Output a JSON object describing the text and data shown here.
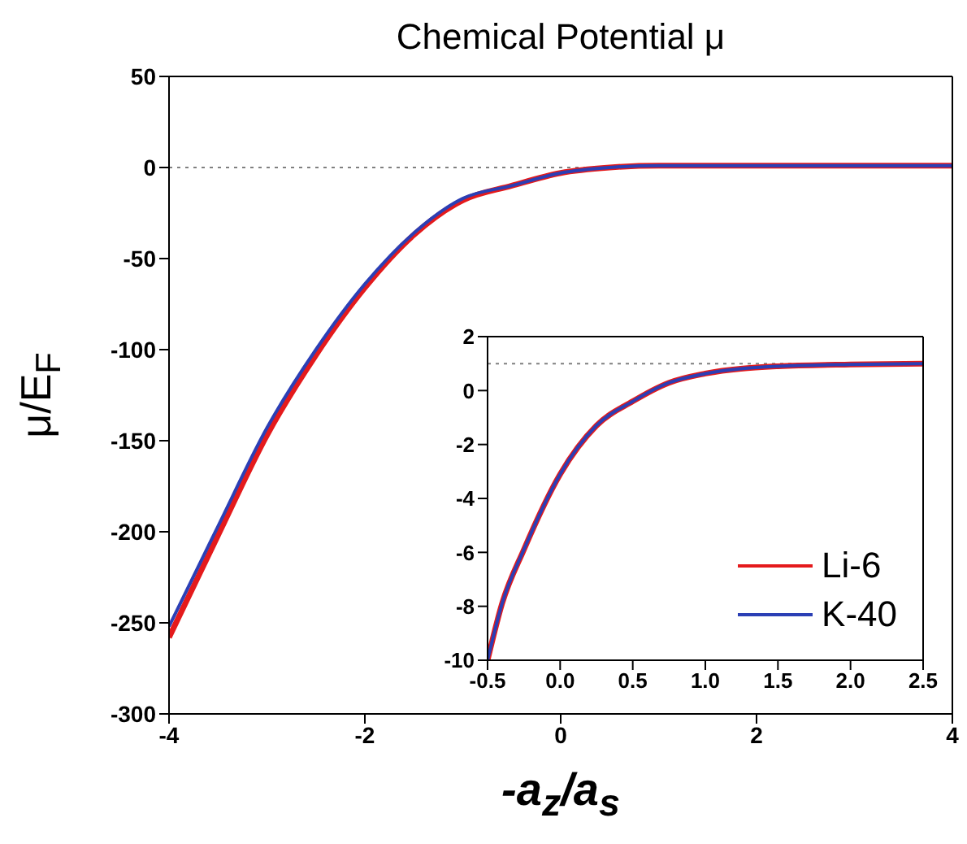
{
  "chart_data": [
    {
      "type": "line",
      "title": "Chemical Potential μ",
      "xlabel": "-a$_{z}$/a$_{s}$",
      "ylabel": "μ/E$_{F}$",
      "x": [
        -4,
        -3.5,
        -3,
        -2.5,
        -2,
        -1.5,
        -1,
        -0.5,
        0,
        0.5,
        1,
        1.5,
        2,
        3,
        4
      ],
      "series": [
        {
          "color": "#e41a1c",
          "values": [
            -258,
            -202,
            -147,
            -103,
            -66,
            -37,
            -18,
            -10,
            -3,
            0,
            1,
            1,
            1,
            1,
            1
          ]
        },
        {
          "color": "#2b3fb5",
          "values": [
            -252,
            -197,
            -143,
            -100,
            -64,
            -36,
            -17,
            -10,
            -3,
            0,
            1,
            1,
            1,
            1,
            1
          ]
        }
      ],
      "xlim": [
        -4,
        4
      ],
      "xticks": [
        -4,
        -2,
        0,
        2,
        4
      ],
      "ylim": [
        -300,
        50
      ],
      "yticks": [
        -300,
        -250,
        -200,
        -150,
        -100,
        -50,
        0,
        50
      ],
      "ref_lines": [
        {
          "axis": "y",
          "value": 0,
          "color": "#808080",
          "line_style": "dotted"
        }
      ]
    },
    {
      "type": "line",
      "x": [
        -0.5,
        -0.4,
        -0.25,
        0,
        0.25,
        0.5,
        0.75,
        1,
        1.5,
        2,
        2.5
      ],
      "series": [
        {
          "name": "Li-6",
          "color": "#e41a1c",
          "values": [
            -10,
            -7.9,
            -5.9,
            -3.1,
            -1.3,
            -0.4,
            0.29,
            0.63,
            0.9,
            0.97,
            1
          ]
        },
        {
          "name": "K-40",
          "color": "#2b3fb5",
          "values": [
            -10,
            -7.9,
            -5.9,
            -3.1,
            -1.3,
            -0.4,
            0.29,
            0.63,
            0.9,
            0.97,
            1
          ]
        }
      ],
      "xlim": [
        -0.5,
        2.5
      ],
      "xticks": [
        {
          "value": -0.5,
          "label": "-0.5"
        },
        {
          "value": 0,
          "label": "0.0"
        },
        {
          "value": 0.5,
          "label": "0.5"
        },
        {
          "value": 1,
          "label": "1.0"
        },
        {
          "value": 1.5,
          "label": "1.5"
        },
        {
          "value": 2,
          "label": "2.0"
        },
        {
          "value": 2.5,
          "label": "2.5"
        }
      ],
      "ylim": [
        -10,
        2
      ],
      "yticks": [
        -10,
        -8,
        -6,
        -4,
        -2,
        0,
        2
      ],
      "legend": "bottom right",
      "ref_lines": [
        {
          "axis": "y",
          "value": 1,
          "color": "#808080",
          "line_style": "dotted"
        }
      ]
    }
  ]
}
